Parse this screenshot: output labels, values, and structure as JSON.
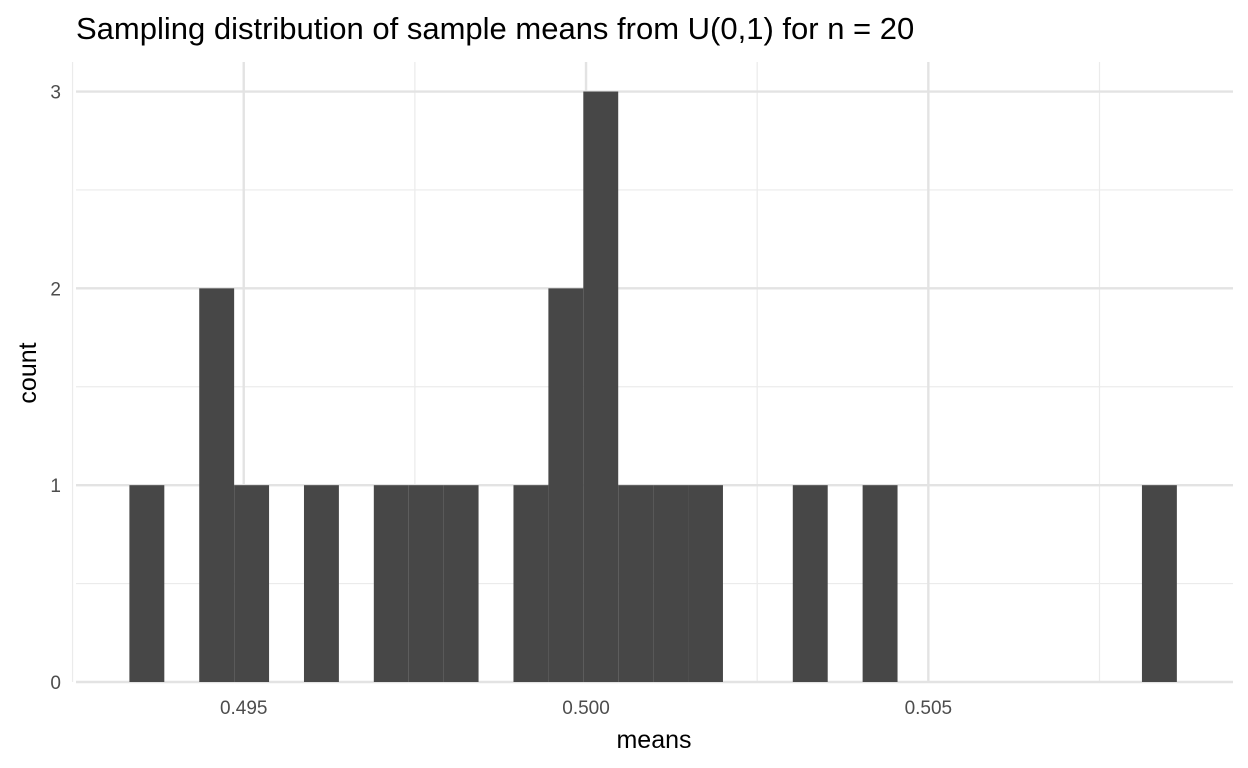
{
  "chart_data": {
    "type": "histogram",
    "title": "Sampling distribution of sample means from U(0,1) for n = 20",
    "xlabel": "means",
    "ylabel": "count",
    "xlim": [
      0.49255,
      0.50945
    ],
    "ylim": [
      0,
      3.15
    ],
    "x_ticks": [
      0.495,
      0.5,
      0.505
    ],
    "x_tick_labels": [
      "0.495",
      "0.500",
      "0.505"
    ],
    "x_minor_ticks": [
      0.4925,
      0.4975,
      0.5025,
      0.5075
    ],
    "y_ticks": [
      0,
      1,
      2,
      3
    ],
    "y_tick_labels": [
      "0",
      "1",
      "2",
      "3"
    ],
    "y_minor_ticks": [
      0.5,
      1.5,
      2.5
    ],
    "grid": true,
    "bar_color": "#474747",
    "bins": [
      {
        "x0": 0.49333,
        "x1": 0.49384,
        "count": 1
      },
      {
        "x0": 0.49384,
        "x1": 0.49435,
        "count": 0
      },
      {
        "x0": 0.49435,
        "x1": 0.49486,
        "count": 2
      },
      {
        "x0": 0.49486,
        "x1": 0.49537,
        "count": 1
      },
      {
        "x0": 0.49537,
        "x1": 0.49588,
        "count": 0
      },
      {
        "x0": 0.49588,
        "x1": 0.49639,
        "count": 1
      },
      {
        "x0": 0.49639,
        "x1": 0.4969,
        "count": 0
      },
      {
        "x0": 0.4969,
        "x1": 0.49741,
        "count": 1
      },
      {
        "x0": 0.49741,
        "x1": 0.49792,
        "count": 1
      },
      {
        "x0": 0.49792,
        "x1": 0.49843,
        "count": 1
      },
      {
        "x0": 0.49843,
        "x1": 0.49894,
        "count": 0
      },
      {
        "x0": 0.49894,
        "x1": 0.49945,
        "count": 1
      },
      {
        "x0": 0.49945,
        "x1": 0.49996,
        "count": 2
      },
      {
        "x0": 0.49996,
        "x1": 0.50047,
        "count": 3
      },
      {
        "x0": 0.50047,
        "x1": 0.50098,
        "count": 1
      },
      {
        "x0": 0.50098,
        "x1": 0.50149,
        "count": 1
      },
      {
        "x0": 0.50149,
        "x1": 0.502,
        "count": 1
      },
      {
        "x0": 0.502,
        "x1": 0.50251,
        "count": 0
      },
      {
        "x0": 0.50251,
        "x1": 0.50302,
        "count": 0
      },
      {
        "x0": 0.50302,
        "x1": 0.50353,
        "count": 1
      },
      {
        "x0": 0.50353,
        "x1": 0.50404,
        "count": 0
      },
      {
        "x0": 0.50404,
        "x1": 0.50455,
        "count": 1
      },
      {
        "x0": 0.50455,
        "x1": 0.50506,
        "count": 0
      },
      {
        "x0": 0.50506,
        "x1": 0.50557,
        "count": 0
      },
      {
        "x0": 0.50557,
        "x1": 0.50608,
        "count": 0
      },
      {
        "x0": 0.50608,
        "x1": 0.50659,
        "count": 0
      },
      {
        "x0": 0.50659,
        "x1": 0.5071,
        "count": 0
      },
      {
        "x0": 0.5071,
        "x1": 0.50761,
        "count": 0
      },
      {
        "x0": 0.50761,
        "x1": 0.50812,
        "count": 0
      },
      {
        "x0": 0.50812,
        "x1": 0.50863,
        "count": 1
      }
    ]
  }
}
